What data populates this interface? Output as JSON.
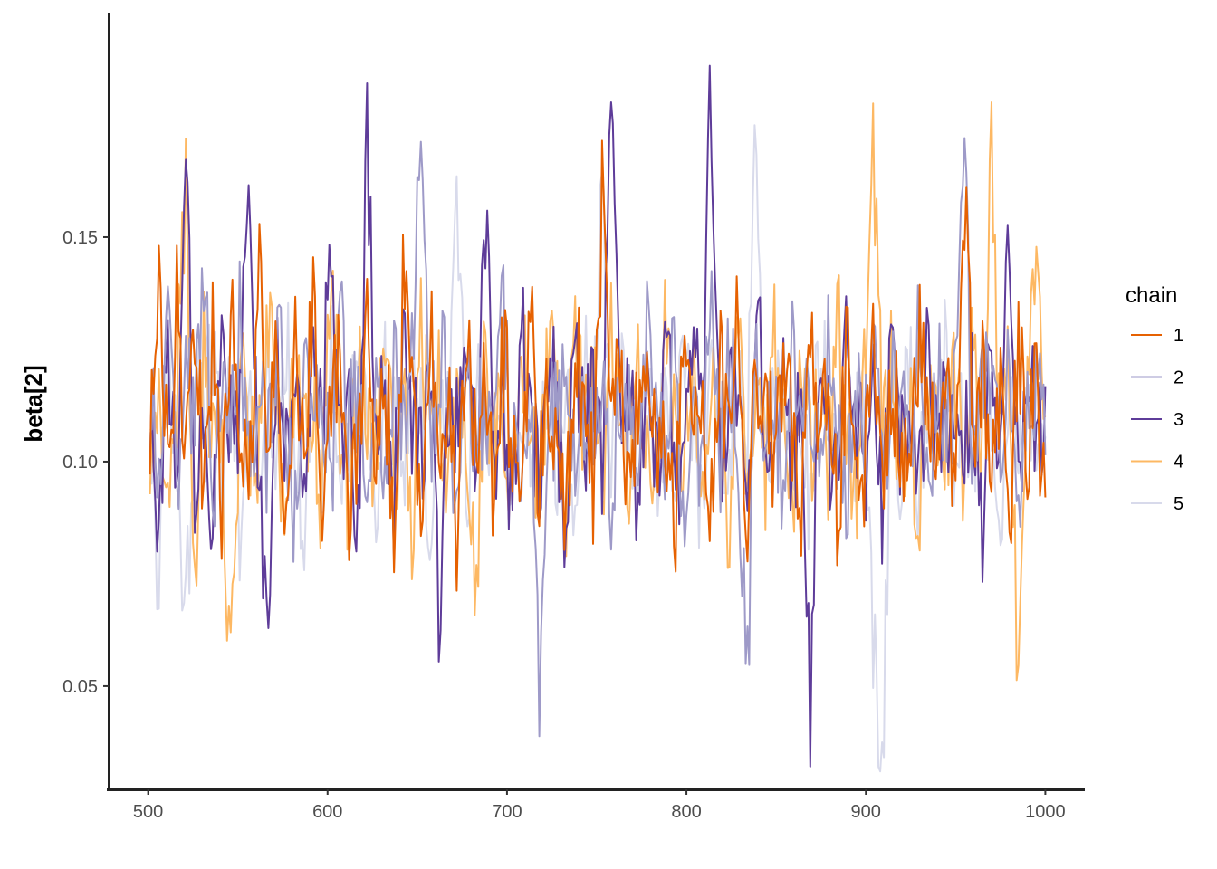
{
  "chart_data": {
    "type": "line",
    "title": "",
    "xlabel": "",
    "ylabel": "beta[2]",
    "xlim": [
      478,
      1022
    ],
    "ylim": [
      0.027,
      0.2
    ],
    "x_ticks": [
      500,
      600,
      700,
      800,
      900,
      1000
    ],
    "x_tick_labels": [
      "500",
      "600",
      "700",
      "800",
      "900",
      "1000"
    ],
    "y_ticks": [
      0.05,
      0.1,
      0.15
    ],
    "y_tick_labels": [
      "0.05",
      "0.10",
      "0.15"
    ],
    "grid": false,
    "legend": {
      "title": "chain",
      "position": "right"
    },
    "x_range": [
      501,
      1000
    ],
    "series": [
      {
        "name": "1",
        "color": "#e66101",
        "values": [
          0.11,
          0.148,
          0.092,
          0.136,
          0.104,
          0.122,
          0.098,
          0.13,
          0.088,
          0.128,
          0.112,
          0.094,
          0.142,
          0.106,
          0.118,
          0.084,
          0.124,
          0.102,
          0.136,
          0.096,
          0.114,
          0.126,
          0.09,
          0.108,
          0.132,
          0.1,
          0.12,
          0.086,
          0.138,
          0.11,
          0.094,
          0.128,
          0.104,
          0.118,
          0.082,
          0.13,
          0.1,
          0.116,
          0.092,
          0.124,
          0.108,
          0.078,
          0.134,
          0.098,
          0.12,
          0.106,
          0.088,
          0.126,
          0.112,
          0.096,
          0.158,
          0.104,
          0.122,
          0.09,
          0.116,
          0.128,
          0.1,
          0.11,
          0.084,
          0.132,
          0.106,
          0.118,
          0.094,
          0.124,
          0.102,
          0.136,
          0.088,
          0.114,
          0.12,
          0.098,
          0.126,
          0.108,
          0.092,
          0.13,
          0.104,
          0.116,
          0.086,
          0.122,
          0.11,
          0.1,
          0.134,
          0.096,
          0.118,
          0.106,
          0.09,
          0.128,
          0.112,
          0.102,
          0.124,
          0.094,
          0.164,
          0.108,
          0.12,
          0.098,
          0.114,
          0.082,
          0.13,
          0.104,
          0.116,
          0.092
        ]
      },
      {
        "name": "2",
        "color": "#9e9ac8",
        "values": [
          0.118,
          0.102,
          0.13,
          0.09,
          0.124,
          0.11,
          0.144,
          0.096,
          0.116,
          0.106,
          0.134,
          0.092,
          0.12,
          0.1,
          0.128,
          0.112,
          0.088,
          0.126,
          0.104,
          0.118,
          0.094,
          0.132,
          0.108,
          0.114,
          0.098,
          0.122,
          0.086,
          0.13,
          0.106,
          0.119,
          0.188,
          0.1,
          0.124,
          0.112,
          0.092,
          0.128,
          0.104,
          0.116,
          0.096,
          0.138,
          0.11,
          0.082,
          0.122,
          0.047,
          0.118,
          0.106,
          0.13,
          0.094,
          0.114,
          0.102,
          0.126,
          0.09,
          0.12,
          0.108,
          0.098,
          0.132,
          0.112,
          0.104,
          0.124,
          0.088,
          0.116,
          0.1,
          0.134,
          0.096,
          0.122,
          0.11,
          0.048,
          0.128,
          0.106,
          0.118,
          0.092,
          0.124,
          0.102,
          0.114,
          0.098,
          0.13,
          0.108,
          0.086,
          0.12,
          0.104,
          0.126,
          0.094,
          0.116,
          0.112,
          0.1,
          0.132,
          0.09,
          0.122,
          0.106,
          0.118,
          0.176,
          0.096,
          0.128,
          0.11,
          0.102,
          0.124,
          0.088,
          0.114,
          0.12,
          0.098
        ]
      },
      {
        "name": "3",
        "color": "#5e3c99",
        "values": [
          0.108,
          0.09,
          0.124,
          0.1,
          0.162,
          0.096,
          0.118,
          0.082,
          0.13,
          0.104,
          0.112,
          0.166,
          0.094,
          0.055,
          0.126,
          0.1,
          0.116,
          0.088,
          0.134,
          0.106,
          0.156,
          0.098,
          0.12,
          0.08,
          0.178,
          0.102,
          0.114,
          0.092,
          0.128,
          0.11,
          0.098,
          0.124,
          0.066,
          0.118,
          0.104,
          0.134,
          0.09,
          0.163,
          0.1,
          0.12,
          0.086,
          0.13,
          0.108,
          0.096,
          0.124,
          0.112,
          0.078,
          0.128,
          0.102,
          0.116,
          0.094,
          0.18,
          0.106,
          0.122,
          0.088,
          0.134,
          0.1,
          0.118,
          0.11,
          0.09,
          0.126,
          0.104,
          0.185,
          0.096,
          0.12,
          0.108,
          0.084,
          0.13,
          0.112,
          0.1,
          0.124,
          0.092,
          0.116,
          0.045,
          0.122,
          0.106,
          0.094,
          0.128,
          0.11,
          0.098,
          0.118,
          0.088,
          0.132,
          0.104,
          0.114,
          0.096,
          0.124,
          0.1,
          0.12,
          0.092,
          0.108,
          0.116,
          0.084,
          0.13,
          0.102,
          0.149,
          0.098,
          0.12,
          0.106,
          0.11
        ]
      },
      {
        "name": "4",
        "color": "#fdb863",
        "values": [
          0.1,
          0.126,
          0.088,
          0.118,
          0.164,
          0.065,
          0.13,
          0.104,
          0.094,
          0.058,
          0.12,
          0.108,
          0.098,
          0.134,
          0.112,
          0.09,
          0.124,
          0.102,
          0.116,
          0.086,
          0.138,
          0.106,
          0.092,
          0.12,
          0.11,
          0.1,
          0.128,
          0.096,
          0.114,
          0.084,
          0.132,
          0.104,
          0.118,
          0.094,
          0.126,
          0.108,
          0.07,
          0.122,
          0.1,
          0.114,
          0.09,
          0.13,
          0.106,
          0.096,
          0.124,
          0.112,
          0.086,
          0.136,
          0.102,
          0.116,
          0.092,
          0.128,
          0.108,
          0.098,
          0.12,
          0.104,
          0.088,
          0.132,
          0.11,
          0.1,
          0.122,
          0.094,
          0.116,
          0.106,
          0.084,
          0.13,
          0.102,
          0.118,
          0.096,
          0.126,
          0.108,
          0.09,
          0.124,
          0.1,
          0.114,
          0.098,
          0.134,
          0.106,
          0.092,
          0.12,
          0.17,
          0.102,
          0.128,
          0.096,
          0.112,
          0.086,
          0.124,
          0.108,
          0.1,
          0.118,
          0.094,
          0.13,
          0.104,
          0.172,
          0.098,
          0.12,
          0.054,
          0.11,
          0.15,
          0.1
        ]
      },
      {
        "name": "5",
        "color": "#d8daeb",
        "values": [
          0.112,
          0.074,
          0.126,
          0.098,
          0.062,
          0.118,
          0.106,
          0.13,
          0.09,
          0.12,
          0.068,
          0.114,
          0.102,
          0.124,
          0.094,
          0.13,
          0.108,
          0.088,
          0.116,
          0.1,
          0.122,
          0.096,
          0.11,
          0.126,
          0.104,
          0.092,
          0.118,
          0.106,
          0.1,
          0.128,
          0.112,
          0.09,
          0.122,
          0.104,
          0.157,
          0.096,
          0.114,
          0.108,
          0.1,
          0.124,
          0.088,
          0.116,
          0.106,
          0.094,
          0.12,
          0.102,
          0.112,
          0.086,
          0.126,
          0.108,
          0.16,
          0.098,
          0.118,
          0.11,
          0.104,
          0.122,
          0.094,
          0.114,
          0.1,
          0.128,
          0.106,
          0.09,
          0.12,
          0.112,
          0.098,
          0.124,
          0.104,
          0.17,
          0.094,
          0.118,
          0.108,
          0.1,
          0.116,
          0.088,
          0.126,
          0.11,
          0.096,
          0.122,
          0.104,
          0.114,
          0.062,
          0.034,
          0.12,
          0.1,
          0.13,
          0.092,
          0.116,
          0.108,
          0.124,
          0.102,
          0.112,
          0.096,
          0.12,
          0.106,
          0.088,
          0.126,
          0.1,
          0.114,
          0.104,
          0.092
        ]
      }
    ]
  }
}
